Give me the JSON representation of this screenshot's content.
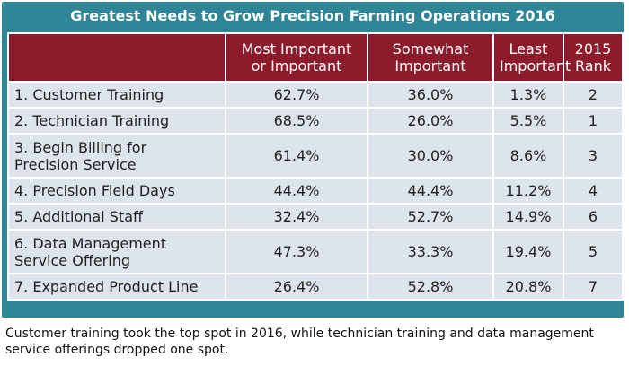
{
  "header": {
    "title": "Greatest Needs to Grow Precision Farming Operations 2016"
  },
  "table": {
    "columns": [
      "Most Important\nor Important",
      "Somewhat\nImportant",
      "Least\nImportant",
      "2015\nRank"
    ],
    "rows": [
      [
        "1. Customer Training",
        "62.7%",
        "36.0%",
        "1.3%",
        "2"
      ],
      [
        "2. Technician Training",
        "68.5%",
        "26.0%",
        "5.5%",
        "1"
      ],
      [
        "3. Begin Billing for\nPrecision Service",
        "61.4%",
        "30.0%",
        "8.6%",
        "3"
      ],
      [
        "4. Precision Field Days",
        "44.4%",
        "44.4%",
        "11.2%",
        "4"
      ],
      [
        "5. Additional Staff",
        "32.4%",
        "52.7%",
        "14.9%",
        "6"
      ],
      [
        "6. Data Management\nService Offering",
        "47.3%",
        "33.3%",
        "19.4%",
        "5"
      ],
      [
        "7. Expanded Product Line",
        "26.4%",
        "52.8%",
        "20.8%",
        "7"
      ]
    ]
  },
  "caption": "Customer training took the top spot in 2016, while technician training and data management service offerings dropped one spot."
}
